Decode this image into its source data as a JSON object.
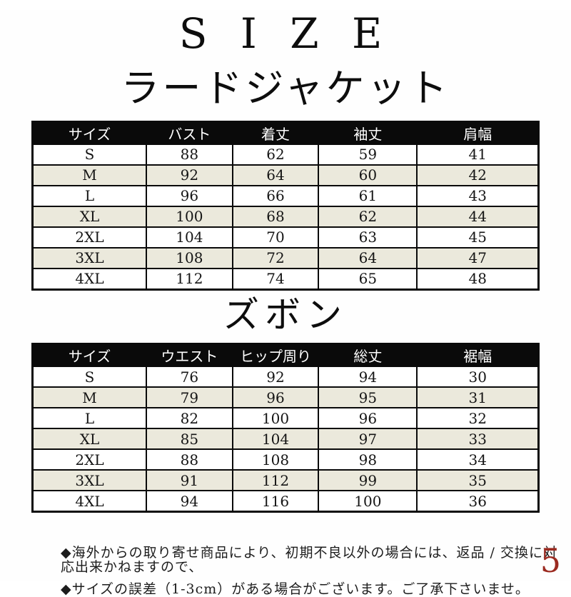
{
  "page": {
    "title": "S I Z E",
    "page_number": "5",
    "page_number_color": "#9b2a20",
    "header_bg_color": "#0a0a0a",
    "header_text_color": "#ffffff",
    "alt_row_color": "#ebe9dc"
  },
  "sections": [
    {
      "heading": "ラードジャケット",
      "table": {
        "columns": [
          "サイズ",
          "バスト",
          "着丈",
          "袖丈",
          "肩幅"
        ],
        "rows": [
          [
            "S",
            "88",
            "62",
            "59",
            "41"
          ],
          [
            "M",
            "92",
            "64",
            "60",
            "42"
          ],
          [
            "L",
            "96",
            "66",
            "61",
            "43"
          ],
          [
            "XL",
            "100",
            "68",
            "62",
            "44"
          ],
          [
            "2XL",
            "104",
            "70",
            "63",
            "45"
          ],
          [
            "3XL",
            "108",
            "72",
            "64",
            "47"
          ],
          [
            "4XL",
            "112",
            "74",
            "65",
            "48"
          ]
        ]
      }
    },
    {
      "heading": "ズボン",
      "table": {
        "columns": [
          "サイズ",
          "ウエスト",
          "ヒップ周り",
          "総丈",
          "裾幅"
        ],
        "rows": [
          [
            "S",
            "76",
            "92",
            "94",
            "30"
          ],
          [
            "M",
            "79",
            "96",
            "95",
            "31"
          ],
          [
            "L",
            "82",
            "100",
            "96",
            "32"
          ],
          [
            "XL",
            "85",
            "104",
            "97",
            "33"
          ],
          [
            "2XL",
            "88",
            "108",
            "98",
            "34"
          ],
          [
            "3XL",
            "91",
            "112",
            "99",
            "35"
          ],
          [
            "4XL",
            "94",
            "116",
            "100",
            "36"
          ]
        ]
      }
    }
  ],
  "notes": [
    "◆海外からの取り寄せ商品により、初期不良以外の場合には、返品 / 交換に対応出来かねますので、",
    "◆サイズの誤差（1-3cm）がある場合がございます。ご了承下さいませ。"
  ]
}
